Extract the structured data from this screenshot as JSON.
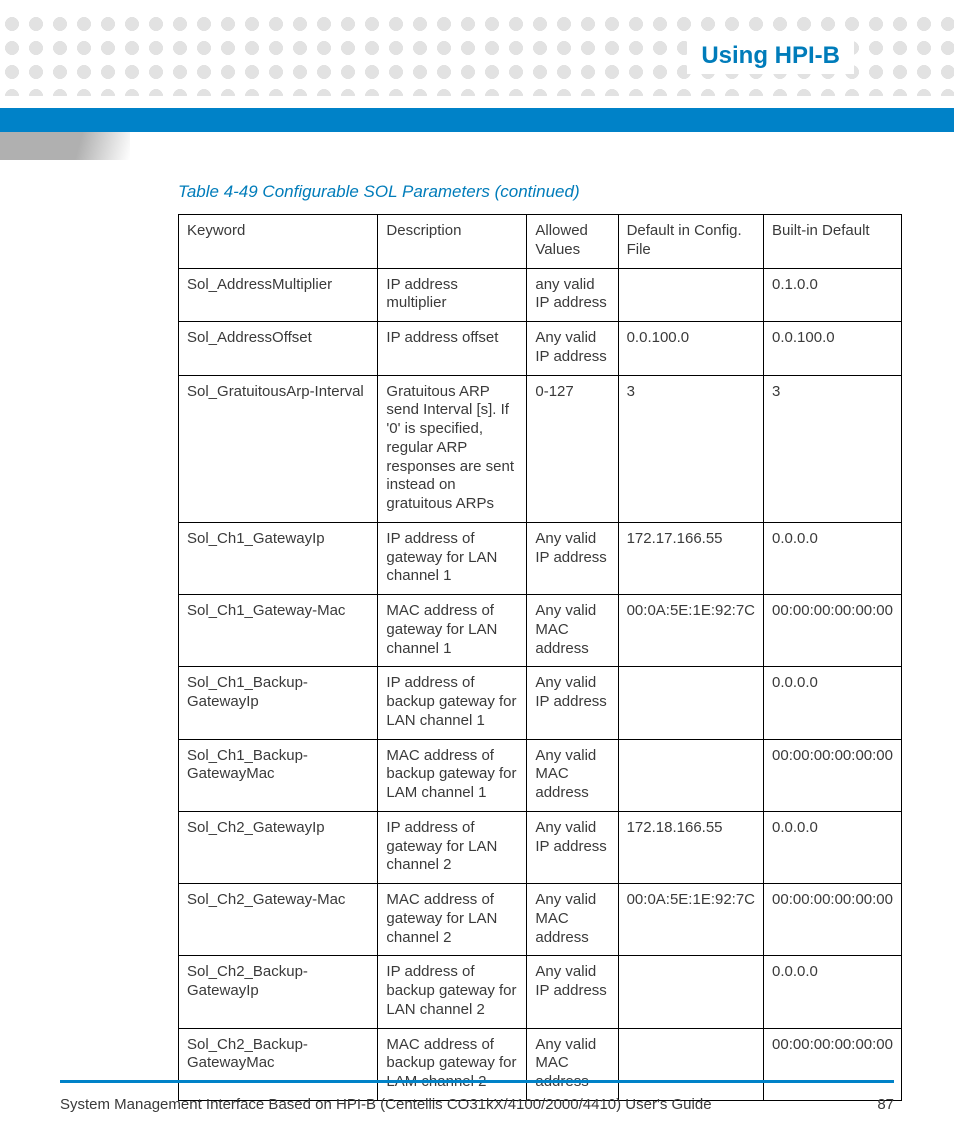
{
  "header": {
    "title": "Using HPI-B"
  },
  "table": {
    "caption": "Table 4-49 Configurable SOL Parameters (continued)",
    "columns": [
      "Keyword",
      "Description",
      "Allowed Values",
      "Default in Config. File",
      "Built-in Default"
    ],
    "rows": [
      [
        "Sol_AddressMultiplier",
        "IP address multiplier",
        "any valid IP address",
        "",
        "0.1.0.0"
      ],
      [
        "Sol_AddressOffset",
        "IP address offset",
        "Any valid IP address",
        "0.0.100.0",
        "0.0.100.0"
      ],
      [
        "Sol_GratuitousArp-Interval",
        "Gratuitous ARP send Interval [s]. If '0' is specified, regular ARP responses are sent instead on gratuitous ARPs",
        "0-127",
        "3",
        "3"
      ],
      [
        "Sol_Ch1_GatewayIp",
        "IP address of gateway for LAN channel 1",
        "Any valid IP address",
        "172.17.166.55",
        "0.0.0.0"
      ],
      [
        "Sol_Ch1_Gateway-Mac",
        "MAC address of gateway for LAN channel 1",
        "Any valid MAC address",
        "00:0A:5E:1E:92:7C",
        "00:00:00:00:00:00"
      ],
      [
        "Sol_Ch1_Backup-GatewayIp",
        "IP address of backup gateway for LAN channel 1",
        "Any valid IP address",
        "",
        "0.0.0.0"
      ],
      [
        "Sol_Ch1_Backup-GatewayMac",
        "MAC address of backup gateway for LAM channel 1",
        "Any valid MAC address",
        "",
        "00:00:00:00:00:00"
      ],
      [
        "Sol_Ch2_GatewayIp",
        "IP address of gateway for LAN channel 2",
        "Any valid IP address",
        "172.18.166.55",
        "0.0.0.0"
      ],
      [
        "Sol_Ch2_Gateway-Mac",
        "MAC address of gateway for LAN channel 2",
        "Any valid MAC address",
        "00:0A:5E:1E:92:7C",
        "00:00:00:00:00:00"
      ],
      [
        "Sol_Ch2_Backup-GatewayIp",
        "IP address of backup gateway for LAN channel 2",
        "Any valid IP address",
        "",
        "0.0.0.0"
      ],
      [
        "Sol_Ch2_Backup-GatewayMac",
        "MAC address of backup gateway for LAM channel 2",
        "Any valid MAC address",
        "",
        "00:00:00:00:00:00"
      ]
    ]
  },
  "footer": {
    "text": "System Management Interface Based on HPI-B (Centellis CO31kX/4100/2000/4410) User's Guide",
    "page": "87"
  },
  "style": {
    "accent_color": "#007cba",
    "bar_color": "#0082c8",
    "dot_color": "#e2e2e2",
    "text_color": "#3a3a3a",
    "border_color": "#000000"
  }
}
